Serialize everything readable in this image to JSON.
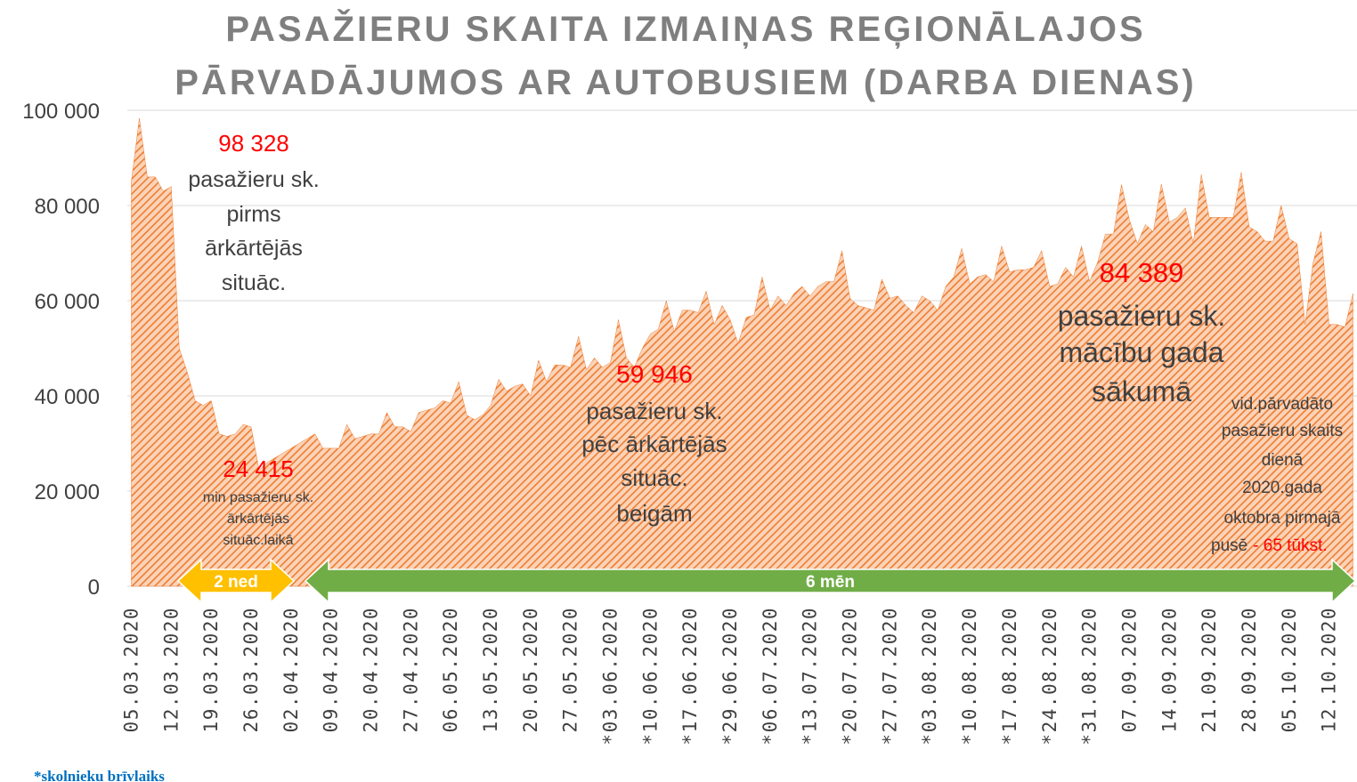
{
  "chart_data": {
    "type": "area",
    "title": [
      "PASAŽIERU SKAITA IZMAIŅAS REĢIONĀLAJOS",
      "PĀRVADĀJUMOS AR AUTOBUSIEM (DARBA DIENAS)"
    ],
    "categories": [
      "05.03.2020",
      null,
      null,
      null,
      null,
      "12.03.2020",
      null,
      null,
      null,
      null,
      "19.03.2020",
      null,
      null,
      null,
      null,
      "26.03.2020",
      null,
      null,
      null,
      null,
      "02.04.2020",
      null,
      null,
      null,
      null,
      "09.04.2020",
      null,
      null,
      null,
      null,
      "20.04.2020",
      null,
      null,
      null,
      null,
      "27.04.2020",
      null,
      null,
      null,
      null,
      "06.05.2020",
      null,
      null,
      null,
      null,
      "13.05.2020",
      null,
      null,
      null,
      null,
      "20.05.2020",
      null,
      null,
      null,
      null,
      "27.05.2020",
      null,
      null,
      null,
      null,
      "*03.06.2020",
      null,
      null,
      null,
      null,
      "*10.06.2020",
      null,
      null,
      null,
      null,
      "*17.06.2020",
      null,
      null,
      null,
      null,
      "*29.06.2020",
      null,
      null,
      null,
      null,
      "*06.07.2020",
      null,
      null,
      null,
      null,
      "*13.07.2020",
      null,
      null,
      null,
      null,
      "*20.07.2020",
      null,
      null,
      null,
      null,
      "*27.07.2020",
      null,
      null,
      null,
      null,
      "*03.08.2020",
      null,
      null,
      null,
      null,
      "*10.08.2020",
      null,
      null,
      null,
      null,
      "*17.08.2020",
      null,
      null,
      null,
      null,
      "*24.08.2020",
      null,
      null,
      null,
      null,
      "*31.08.2020",
      null,
      null,
      null,
      null,
      "07.09.2020",
      null,
      null,
      null,
      null,
      "14.09.2020",
      null,
      null,
      null,
      null,
      "21.09.2020",
      null,
      null,
      null,
      null,
      "28.09.2020",
      null,
      null,
      null,
      null,
      "05.10.2020",
      null,
      null,
      null,
      null,
      "12.10.2020",
      null,
      null,
      null
    ],
    "values": [
      85000,
      98328,
      86000,
      86000,
      83000,
      84000,
      50000,
      45000,
      39000,
      38000,
      39000,
      32000,
      31500,
      32000,
      34000,
      33500,
      24415,
      26000,
      27000,
      28000,
      29000,
      30000,
      31000,
      32000,
      29000,
      29000,
      29000,
      34000,
      31000,
      31500,
      32000,
      32000,
      36500,
      33500,
      33500,
      32500,
      36500,
      37000,
      37500,
      39000,
      38500,
      43000,
      36000,
      35000,
      36000,
      38000,
      43500,
      41000,
      42000,
      42500,
      40000,
      47500,
      43000,
      46500,
      46500,
      46000,
      52500,
      45500,
      48000,
      46000,
      47000,
      56000,
      48000,
      46000,
      50000,
      53000,
      54000,
      60000,
      53500,
      58000,
      58000,
      57500,
      62000,
      55000,
      59000,
      56000,
      51000,
      56500,
      57000,
      65000,
      58000,
      61000,
      59000,
      61500,
      63000,
      61000,
      63000,
      64000,
      64000,
      70500,
      60500,
      59000,
      58500,
      58000,
      64500,
      60500,
      61000,
      59000,
      57500,
      61000,
      60000,
      58000,
      63000,
      65000,
      71000,
      63500,
      65000,
      65500,
      64000,
      71500,
      66000,
      66500,
      66500,
      67000,
      70500,
      63000,
      63500,
      67000,
      65000,
      71500,
      64000,
      68000,
      74000,
      74000,
      84389,
      77000,
      72000,
      76000,
      74500,
      84500,
      76500,
      77500,
      79500,
      72000,
      86500,
      77500,
      77500,
      77500,
      77500,
      87000,
      75500,
      74500,
      72500,
      72500,
      80000,
      73000,
      72000,
      55000,
      68000,
      74500,
      55000,
      55000,
      54500,
      61500
    ],
    "color": "#ed7d31",
    "ylim": [
      0,
      100000
    ],
    "yticks": [
      0,
      {
        "value": 20000,
        "label": "20 000"
      },
      {
        "value": 40000,
        "label": "40 000"
      },
      {
        "value": 60000,
        "label": "60 000"
      },
      {
        "value": 80000,
        "label": "80 000"
      },
      {
        "value": 100000,
        "label": "100 000"
      }
    ],
    "grid": true,
    "annotations": [
      {
        "value": 98328,
        "label": "98 328",
        "text": [
          "pasažieru sk.",
          "pirms",
          "ārkārtējās",
          "situāc."
        ]
      },
      {
        "value": 24415,
        "label": "24 415",
        "text": [
          "min pasažieru sk.",
          "ārkārtējās",
          "situāc.laikā"
        ]
      },
      {
        "value": 59946,
        "label": "59 946",
        "text": [
          "pasažieru sk.",
          "pēc ārkārtējās",
          "situāc.",
          "beigām"
        ]
      },
      {
        "value": 84389,
        "label": "84 389",
        "text": [
          "pasažieru sk.",
          "mācību gada",
          "sākumā"
        ]
      },
      {
        "text": [
          "vid.pārvadāto",
          "pasažieru skaits",
          "dienā",
          "2020.gada",
          "oktobra pirmajā",
          "pusē"
        ],
        "suffix": "- 65 tūkst."
      }
    ],
    "periods": [
      {
        "label": "2 ned",
        "color": "#ffc000"
      },
      {
        "label": "6 mēn",
        "color": "#70ad47"
      }
    ],
    "footnote": "*skolnieku brīvlaiks"
  }
}
